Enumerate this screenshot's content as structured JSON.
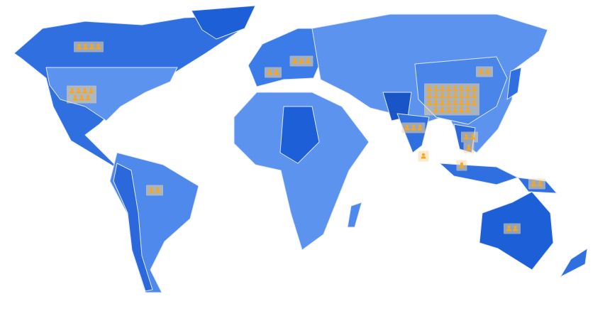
{
  "markers": [
    {
      "count": 4
    },
    {
      "count": 7
    },
    {
      "count": 2
    },
    {
      "count": 3
    },
    {
      "count": 2
    },
    {
      "count": 3
    },
    {
      "count": 1
    },
    {
      "count": 30
    },
    {
      "count": 2
    },
    {
      "count": 2
    },
    {
      "count": 1
    },
    {
      "count": 1
    },
    {
      "count": 2
    },
    {
      "count": 2
    }
  ]
}
